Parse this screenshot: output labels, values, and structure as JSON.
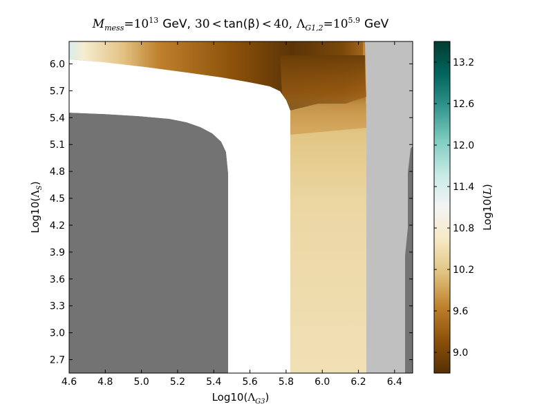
{
  "chart_data": {
    "type": "heatmap",
    "title": {
      "m_symbol": "M",
      "m_sub": "mess",
      "m_eq": "=10",
      "m_exp": "13",
      "gev1": "GeV,",
      "tb_lo": "30",
      "tb_lt1": "<",
      "tb_label": "tan(β)",
      "tb_lt2": "<",
      "tb_hi": "40,",
      "lam_symbol": "Λ",
      "lam_sub": "G1,2",
      "lam_eq": "=10",
      "lam_exp": "5.9",
      "gev2": "GeV"
    },
    "xlabel": {
      "prefix": "Log10(",
      "symbol": "Λ",
      "sub": "G3",
      "suffix": ")"
    },
    "ylabel": {
      "prefix": "Log10(",
      "symbol": "Λ",
      "sub": "S",
      "suffix": ")"
    },
    "xlim": [
      4.6,
      6.5
    ],
    "ylim": [
      2.55,
      6.25
    ],
    "x_ticks": [
      "4.6",
      "4.8",
      "5.0",
      "5.2",
      "5.4",
      "5.6",
      "5.8",
      "6.0",
      "6.2",
      "6.4"
    ],
    "y_ticks": [
      "2.7",
      "3.0",
      "3.3",
      "3.6",
      "3.9",
      "4.2",
      "4.5",
      "4.8",
      "5.1",
      "5.4",
      "5.7",
      "6.0"
    ],
    "colorbar": {
      "label_prefix": "Log10(",
      "label_symbol": "L",
      "label_suffix": ")",
      "range": [
        8.7,
        13.5
      ],
      "ticks": [
        "9.0",
        "9.6",
        "10.2",
        "10.8",
        "11.4",
        "12.0",
        "12.6",
        "13.2"
      ],
      "colormap": "BrBG",
      "stops": [
        "#543005",
        "#8c510a",
        "#bf812d",
        "#dfc27d",
        "#f6e8c3",
        "#f5f5f5",
        "#c7eae5",
        "#80cdc1",
        "#35978f",
        "#01665e",
        "#003c30"
      ]
    },
    "regions": [
      {
        "name": "excluded-dark",
        "color": "#737373",
        "description_points": [
          [
            4.6,
            2.55
          ],
          [
            5.48,
            2.55
          ],
          [
            5.48,
            4.75
          ],
          [
            5.45,
            5.05
          ],
          [
            5.35,
            5.28
          ],
          [
            5.2,
            5.38
          ],
          [
            5.0,
            5.42
          ],
          [
            4.6,
            5.44
          ]
        ]
      },
      {
        "name": "excluded-light",
        "color": "#c0c0c0",
        "description_points": [
          [
            6.25,
            2.55
          ],
          [
            6.5,
            2.55
          ],
          [
            6.5,
            6.25
          ],
          [
            6.25,
            6.25
          ]
        ]
      },
      {
        "name": "excluded-dark-right",
        "color": "#737373",
        "description_points": [
          [
            6.47,
            2.55
          ],
          [
            6.5,
            2.55
          ],
          [
            6.5,
            4.95
          ],
          [
            6.47,
            4.85
          ]
        ]
      }
    ],
    "likelihood_samples": [
      {
        "x": 4.62,
        "y": 6.18,
        "z": 11.2
      },
      {
        "x": 4.75,
        "y": 6.15,
        "z": 10.6
      },
      {
        "x": 4.95,
        "y": 6.12,
        "z": 10.0
      },
      {
        "x": 5.2,
        "y": 6.08,
        "z": 9.4
      },
      {
        "x": 5.5,
        "y": 6.02,
        "z": 9.0
      },
      {
        "x": 5.75,
        "y": 5.88,
        "z": 8.8
      },
      {
        "x": 5.95,
        "y": 5.8,
        "z": 8.85
      },
      {
        "x": 6.15,
        "y": 5.95,
        "z": 9.3
      },
      {
        "x": 5.9,
        "y": 5.45,
        "z": 9.5
      },
      {
        "x": 6.1,
        "y": 5.4,
        "z": 9.9
      },
      {
        "x": 5.9,
        "y": 5.1,
        "z": 10.2
      },
      {
        "x": 6.1,
        "y": 4.7,
        "z": 10.35
      },
      {
        "x": 5.95,
        "y": 3.8,
        "z": 10.4
      },
      {
        "x": 6.1,
        "y": 3.0,
        "z": 10.5
      }
    ]
  }
}
